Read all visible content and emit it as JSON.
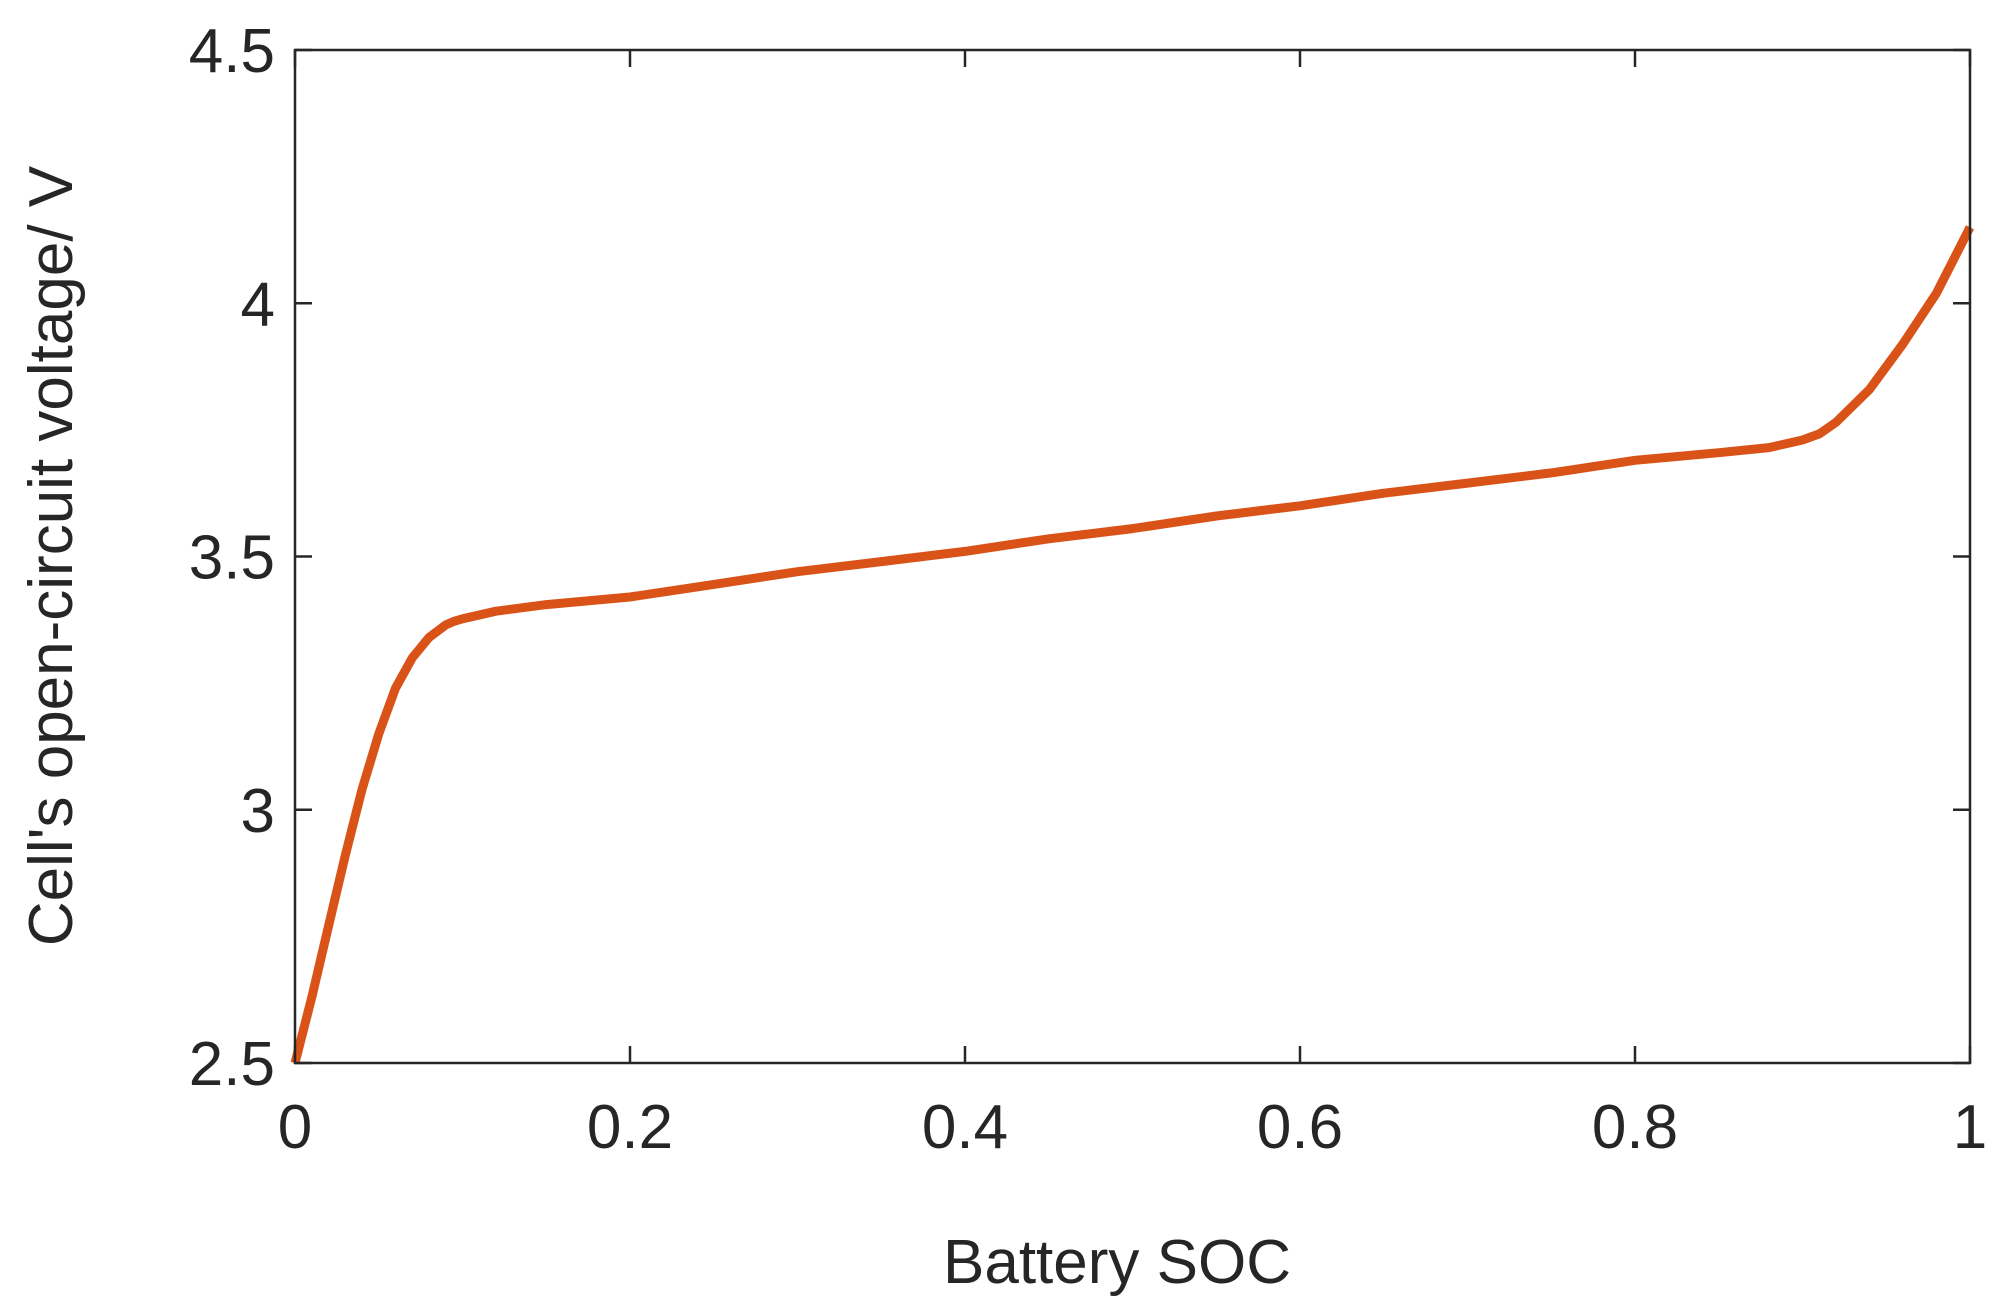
{
  "chart_data": {
    "type": "line",
    "title": "",
    "xlabel": "Battery SOC",
    "ylabel": "Cell's open-circuit voltage/ V",
    "xlim": [
      0,
      1
    ],
    "ylim": [
      2.5,
      4.5
    ],
    "xticks": [
      0,
      0.2,
      0.4,
      0.6,
      0.8,
      1
    ],
    "xtick_labels": [
      "0",
      "0.2",
      "0.4",
      "0.6",
      "0.8",
      "1"
    ],
    "yticks": [
      2.5,
      3,
      3.5,
      4,
      4.5
    ],
    "ytick_labels": [
      "2.5",
      "3",
      "3.5",
      "4",
      "4.5"
    ],
    "grid": false,
    "legend": "none",
    "line_color": "#D95319",
    "series": [
      {
        "x": [
          0,
          0.01,
          0.02,
          0.03,
          0.04,
          0.05,
          0.06,
          0.07,
          0.08,
          0.09,
          0.095,
          0.1,
          0.12,
          0.15,
          0.2,
          0.25,
          0.3,
          0.35,
          0.4,
          0.45,
          0.5,
          0.55,
          0.6,
          0.65,
          0.7,
          0.75,
          0.8,
          0.85,
          0.88,
          0.9,
          0.91,
          0.92,
          0.94,
          0.96,
          0.98,
          1.0
        ],
        "y": [
          2.5,
          2.63,
          2.77,
          2.91,
          3.04,
          3.15,
          3.24,
          3.3,
          3.34,
          3.365,
          3.372,
          3.377,
          3.392,
          3.405,
          3.42,
          3.445,
          3.47,
          3.49,
          3.51,
          3.535,
          3.555,
          3.58,
          3.6,
          3.625,
          3.645,
          3.665,
          3.69,
          3.705,
          3.715,
          3.73,
          3.742,
          3.765,
          3.83,
          3.92,
          4.02,
          4.15
        ]
      }
    ]
  }
}
